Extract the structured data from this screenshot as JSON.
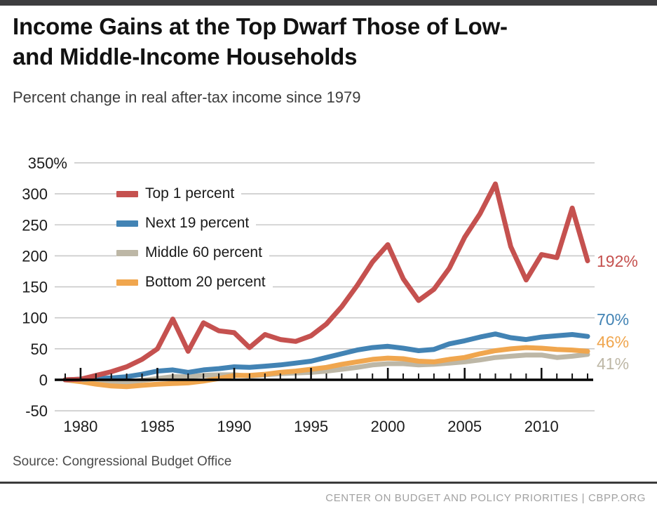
{
  "header": {
    "title_line1": "Income Gains at the Top Dwarf Those of Low-",
    "title_line2": "and Middle-Income Households",
    "subtitle": "Percent change in real after-tax income since 1979"
  },
  "footer": {
    "source": "Source: Congressional Budget Office",
    "credit": "CENTER ON BUDGET AND POLICY PRIORITIES | CBPP.ORG"
  },
  "colors": {
    "top_bar": "#3d3d3f",
    "divider": "#3b3b3b",
    "gridline": "#c9c9c9",
    "axis": "#000000",
    "tick": "#111111",
    "axis_label": "#1b1b1b"
  },
  "chart_data": {
    "type": "line",
    "title": "Income Gains at the Top Dwarf Those of Low- and Middle-Income Households",
    "subtitle": "Percent change in real after-tax income since 1979",
    "source": "Source: Congressional Budget Office",
    "grid": "horizontal",
    "legend_position": "upper-left-inside",
    "ylim": [
      -50,
      350
    ],
    "y_ticks": [
      "350%",
      "300",
      "250",
      "200",
      "150",
      "100",
      "50",
      "0",
      "-50"
    ],
    "x_ticks": [
      1980,
      1985,
      1990,
      1995,
      2000,
      2005,
      2010
    ],
    "x": [
      1979,
      1980,
      1981,
      1982,
      1983,
      1984,
      1985,
      1986,
      1987,
      1988,
      1989,
      1990,
      1991,
      1992,
      1993,
      1994,
      1995,
      1996,
      1997,
      1998,
      1999,
      2000,
      2001,
      2002,
      2003,
      2004,
      2005,
      2006,
      2007,
      2008,
      2009,
      2010,
      2011,
      2012,
      2013
    ],
    "series": [
      {
        "name": "Top 1 percent",
        "color": "#c5514f",
        "end_label": "192%",
        "values": [
          0,
          1,
          7,
          13,
          21,
          33,
          50,
          98,
          46,
          92,
          79,
          76,
          52,
          73,
          65,
          62,
          71,
          90,
          118,
          152,
          190,
          218,
          163,
          128,
          146,
          180,
          230,
          268,
          316,
          215,
          161,
          202,
          197,
          277,
          192
        ]
      },
      {
        "name": "Next 19 percent",
        "color": "#4283b4",
        "end_label": "70%",
        "values": [
          0,
          1,
          2,
          3,
          5,
          9,
          14,
          16,
          12,
          16,
          18,
          21,
          20,
          22,
          24,
          27,
          30,
          36,
          42,
          48,
          52,
          54,
          51,
          47,
          49,
          58,
          63,
          69,
          74,
          68,
          65,
          69,
          71,
          73,
          70
        ]
      },
      {
        "name": "Middle 60 percent",
        "color": "#bdb7a6",
        "end_label": "41%",
        "values": [
          0,
          -1,
          -2,
          -3,
          -4,
          -1,
          2,
          5,
          5,
          7,
          8,
          8,
          6,
          8,
          10,
          11,
          12,
          14,
          17,
          20,
          24,
          26,
          26,
          24,
          25,
          27,
          29,
          32,
          36,
          38,
          40,
          40,
          36,
          38,
          41
        ]
      },
      {
        "name": "Bottom 20 percent",
        "color": "#f0a64e",
        "end_label": "46%",
        "values": [
          0,
          -3,
          -7,
          -10,
          -11,
          -9,
          -7,
          -6,
          -5,
          -2,
          2,
          7,
          7,
          9,
          12,
          14,
          17,
          20,
          25,
          29,
          33,
          35,
          34,
          30,
          29,
          33,
          36,
          42,
          47,
          50,
          52,
          51,
          49,
          48,
          46
        ]
      }
    ],
    "z_order": [
      2,
      3,
      1,
      0
    ]
  }
}
